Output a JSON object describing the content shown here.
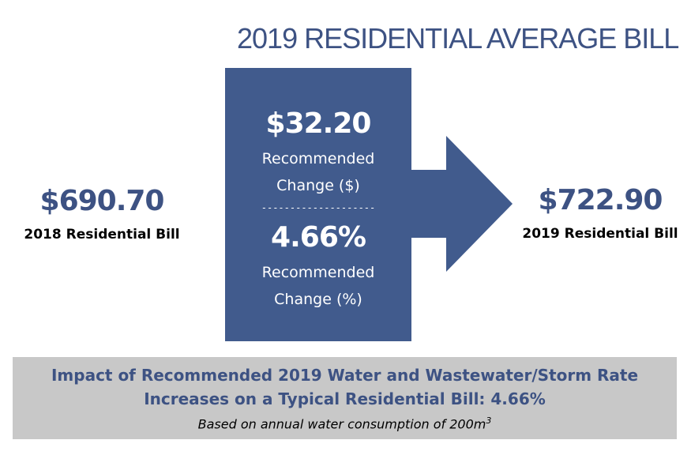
{
  "title": "2019 RESIDENTIAL AVERAGE BILL",
  "left": {
    "value": "$690.70",
    "label": "2018 Residential Bill"
  },
  "right": {
    "value": "$722.90",
    "label": "2019 Residential Bill"
  },
  "center": {
    "dollar_value": "$32.20",
    "dollar_label_1": "Recommended",
    "dollar_label_2": "Change ($)",
    "separator": "--------------------",
    "percent_value": "4.66%",
    "percent_label_1": "Recommended",
    "percent_label_2": "Change (%)"
  },
  "footer": {
    "line1": "Impact of Recommended 2019 Water and Wastewater/Storm Rate",
    "line2": "Increases on a Typical Residential Bill: 4.66%",
    "note": "Based on annual water consumption of 200m",
    "note_sup": "3"
  },
  "colors": {
    "accent": "#3d5283",
    "arrow_fill": "#415b8d",
    "footer_bg": "#c8c8c8"
  }
}
